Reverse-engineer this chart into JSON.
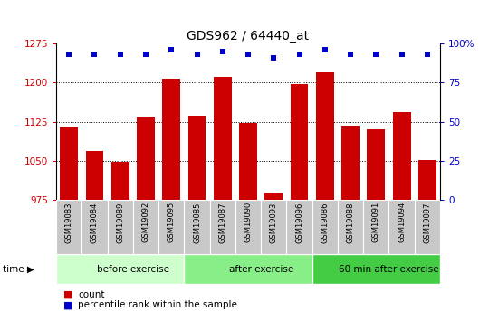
{
  "title": "GDS962 / 64440_at",
  "samples": [
    "GSM19083",
    "GSM19084",
    "GSM19089",
    "GSM19092",
    "GSM19095",
    "GSM19085",
    "GSM19087",
    "GSM19090",
    "GSM19093",
    "GSM19096",
    "GSM19086",
    "GSM19088",
    "GSM19091",
    "GSM19094",
    "GSM19097"
  ],
  "counts": [
    1115,
    1068,
    1047,
    1135,
    1207,
    1137,
    1212,
    1123,
    988,
    1197,
    1220,
    1117,
    1110,
    1143,
    1052
  ],
  "percentiles": [
    93,
    93,
    93,
    93,
    96,
    93,
    95,
    93,
    91,
    93,
    96,
    93,
    93,
    93,
    93
  ],
  "groups": [
    {
      "label": "before exercise",
      "start": 0,
      "end": 5,
      "color": "#ccffcc"
    },
    {
      "label": "after exercise",
      "start": 5,
      "end": 10,
      "color": "#88ee88"
    },
    {
      "label": "60 min after exercise",
      "start": 10,
      "end": 15,
      "color": "#44cc44"
    }
  ],
  "ylim": [
    975,
    1275
  ],
  "yticks": [
    975,
    1050,
    1125,
    1200,
    1275
  ],
  "right_ylim": [
    0,
    100
  ],
  "right_yticks": [
    0,
    25,
    50,
    75,
    100
  ],
  "bar_color": "#cc0000",
  "dot_color": "#0000cc",
  "bg_xtick": "#c8c8c8",
  "count_legend": "count",
  "percentile_legend": "percentile rank within the sample",
  "time_label": "time"
}
